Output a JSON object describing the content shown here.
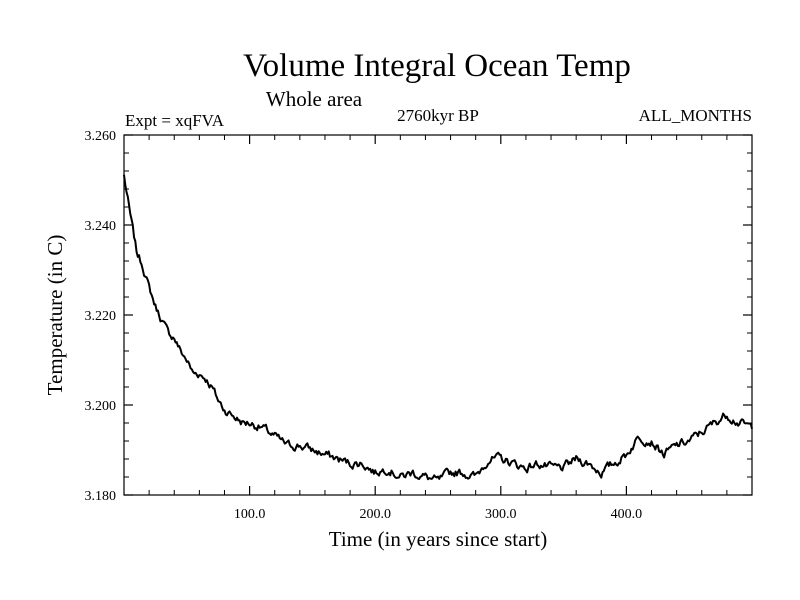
{
  "chart_data": {
    "type": "line",
    "title": "Volume Integral Ocean Temp",
    "subtitle": "Whole area",
    "top_left_label": "Expt = xqFVA",
    "top_center_label": "2760kyr BP",
    "top_right_label": "ALL_MONTHS",
    "xlabel": "Time (in years since start)",
    "ylabel": "Temperature (in C)",
    "xlim": [
      0,
      500
    ],
    "ylim": [
      3.18,
      3.26
    ],
    "xticks": [
      100,
      200,
      300,
      400
    ],
    "xtick_labels": [
      "100.0",
      "200.0",
      "300.0",
      "400.0"
    ],
    "yticks": [
      3.18,
      3.2,
      3.22,
      3.24,
      3.26
    ],
    "ytick_labels": [
      "3.180",
      "3.200",
      "3.220",
      "3.240",
      "3.260"
    ],
    "series": [
      {
        "name": "Volume Integral Ocean Temp",
        "color": "#000000",
        "x": [
          0,
          5,
          10,
          15,
          20,
          25,
          30,
          35,
          40,
          45,
          50,
          55,
          60,
          65,
          70,
          75,
          80,
          85,
          90,
          95,
          100,
          110,
          120,
          130,
          140,
          150,
          160,
          170,
          180,
          190,
          200,
          210,
          220,
          230,
          240,
          250,
          260,
          270,
          280,
          290,
          300,
          310,
          320,
          330,
          340,
          350,
          360,
          370,
          380,
          390,
          400,
          410,
          420,
          430,
          440,
          450,
          460,
          470,
          480,
          490,
          500
        ],
        "values": [
          3.251,
          3.242,
          3.234,
          3.231,
          3.226,
          3.222,
          3.219,
          3.216,
          3.215,
          3.212,
          3.21,
          3.207,
          3.207,
          3.206,
          3.204,
          3.201,
          3.199,
          3.198,
          3.197,
          3.196,
          3.196,
          3.195,
          3.193,
          3.191,
          3.191,
          3.19,
          3.189,
          3.188,
          3.187,
          3.187,
          3.185,
          3.186,
          3.184,
          3.185,
          3.184,
          3.183,
          3.185,
          3.185,
          3.184,
          3.188,
          3.188,
          3.187,
          3.186,
          3.187,
          3.186,
          3.186,
          3.188,
          3.187,
          3.185,
          3.187,
          3.189,
          3.193,
          3.192,
          3.189,
          3.191,
          3.192,
          3.194,
          3.196,
          3.198,
          3.196,
          3.195
        ]
      }
    ]
  }
}
